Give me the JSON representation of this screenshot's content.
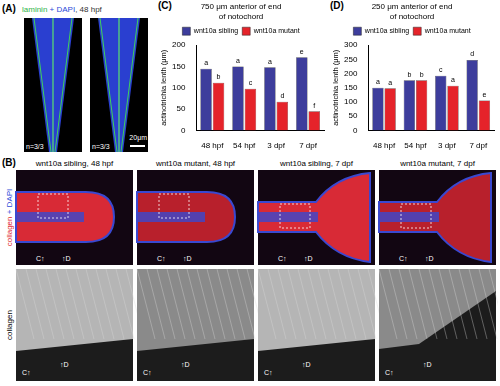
{
  "figure": {
    "A": {
      "letter": "(A)",
      "title": [
        {
          "text": "laminin",
          "color": "#2fb34a"
        },
        {
          "text": " + DAPI",
          "color": "#2a48d8"
        },
        {
          "text": ", 48 hpf",
          "color": "#333333"
        }
      ],
      "counts": [
        "n=3/3",
        "n=3/3"
      ],
      "scale_bar": "20μm"
    },
    "B": {
      "letter": "(B)",
      "row_labels": [
        [
          {
            "text": "collagen",
            "color": "#e0202a"
          },
          {
            "text": " + DAPI",
            "color": "#2a48d8"
          }
        ],
        [
          {
            "text": "collagen",
            "color": "#000000"
          }
        ]
      ],
      "panels": [
        "wnt10a sibling, 48 hpf",
        "wnt10a mutant, 48 hpf",
        "wnt10a sibling, 7 dpf",
        "wnt10a mutant, 7 dpf"
      ],
      "markers": [
        "C↑",
        "↑D"
      ]
    }
  },
  "chart_data": [
    {
      "panel": "(C)",
      "type": "bar",
      "title": "750 μm anterior of end of notochord",
      "y_label": "actinotrichia lenth (μm)",
      "categories": [
        "48 hpf",
        "54 hpf",
        "3 dpf",
        "7 dpf"
      ],
      "series": [
        {
          "name": "wnt10a sibling",
          "color": "#3d3d9c",
          "values": [
            145,
            150,
            148,
            172
          ],
          "annotations": [
            "a",
            "a",
            "a",
            "e"
          ]
        },
        {
          "name": "wnt10a mutant",
          "color": "#e5232a",
          "values": [
            112,
            98,
            67,
            45
          ],
          "annotations": [
            "b",
            "c",
            "d",
            "f"
          ]
        }
      ],
      "ylim": [
        0,
        200
      ],
      "yticks": [
        0,
        50,
        100,
        150,
        200
      ],
      "grid": false,
      "legend": "top"
    },
    {
      "panel": "(D)",
      "type": "bar",
      "title": "250 μm anterior of end of notochord",
      "y_label": "actinotrichia lenth (μm)",
      "categories": [
        "48 hpf",
        "54 hpf",
        "3 dpf",
        "7 dpf"
      ],
      "series": [
        {
          "name": "wnt10a sibling",
          "color": "#3d3d9c",
          "values": [
            150,
            177,
            192,
            248
          ],
          "annotations": [
            "a",
            "b",
            "c",
            "d"
          ]
        },
        {
          "name": "wnt10a mutant",
          "color": "#e5232a",
          "values": [
            148,
            177,
            157,
            105
          ],
          "annotations": [
            "a",
            "b",
            "a",
            "e"
          ]
        }
      ],
      "ylim": [
        0,
        300
      ],
      "yticks": [
        0,
        50,
        100,
        150,
        200,
        250,
        300
      ],
      "grid": false,
      "legend": "top"
    }
  ]
}
